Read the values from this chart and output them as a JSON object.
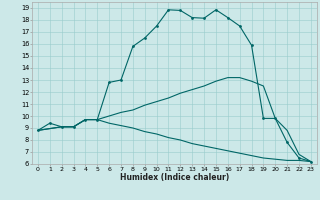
{
  "xlabel": "Humidex (Indice chaleur)",
  "background_color": "#cce8e8",
  "line_color": "#006666",
  "xlim": [
    -0.5,
    23.5
  ],
  "ylim": [
    6,
    19.5
  ],
  "xticks": [
    0,
    1,
    2,
    3,
    4,
    5,
    6,
    7,
    8,
    9,
    10,
    11,
    12,
    13,
    14,
    15,
    16,
    17,
    18,
    19,
    20,
    21,
    22,
    23
  ],
  "yticks": [
    6,
    7,
    8,
    9,
    10,
    11,
    12,
    13,
    14,
    15,
    16,
    17,
    18,
    19
  ],
  "curve1_x": [
    0,
    1,
    2,
    3,
    4,
    5,
    6,
    7,
    8,
    9,
    10,
    11,
    12,
    13,
    14,
    15,
    16,
    17,
    18,
    19,
    20,
    21,
    22,
    23
  ],
  "curve1_y": [
    8.8,
    9.4,
    9.1,
    9.1,
    9.7,
    9.7,
    12.8,
    13.0,
    15.8,
    16.5,
    17.5,
    18.85,
    18.8,
    18.2,
    18.15,
    18.85,
    18.2,
    17.5,
    15.9,
    9.8,
    9.8,
    7.8,
    6.5,
    6.2
  ],
  "curve2_x": [
    0,
    2,
    3,
    4,
    5,
    6,
    7,
    8,
    9,
    10,
    11,
    12,
    13,
    14,
    15,
    16,
    17,
    18,
    19,
    20,
    21,
    22,
    23
  ],
  "curve2_y": [
    8.8,
    9.1,
    9.1,
    9.7,
    9.7,
    10.0,
    10.3,
    10.5,
    10.9,
    11.2,
    11.5,
    11.9,
    12.2,
    12.5,
    12.9,
    13.2,
    13.2,
    12.9,
    12.5,
    9.8,
    8.8,
    6.8,
    6.2
  ],
  "curve3_x": [
    0,
    2,
    3,
    4,
    5,
    6,
    7,
    8,
    9,
    10,
    11,
    12,
    13,
    14,
    15,
    16,
    17,
    18,
    19,
    20,
    21,
    22,
    23
  ],
  "curve3_y": [
    8.8,
    9.1,
    9.1,
    9.7,
    9.7,
    9.4,
    9.2,
    9.0,
    8.7,
    8.5,
    8.2,
    8.0,
    7.7,
    7.5,
    7.3,
    7.1,
    6.9,
    6.7,
    6.5,
    6.4,
    6.3,
    6.3,
    6.2
  ]
}
